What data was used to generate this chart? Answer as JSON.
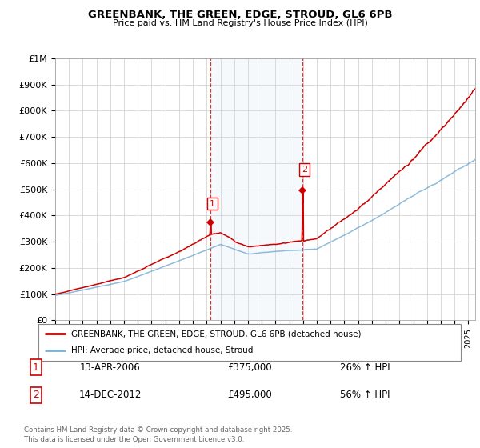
{
  "title": "GREENBANK, THE GREEN, EDGE, STROUD, GL6 6PB",
  "subtitle": "Price paid vs. HM Land Registry's House Price Index (HPI)",
  "ylim": [
    0,
    1000000
  ],
  "xlim_start": 1995.0,
  "xlim_end": 2025.5,
  "hpi_color": "#7bafd4",
  "price_color": "#cc0000",
  "sale1_date": 2006.28,
  "sale1_price": 375000,
  "sale1_label": "1",
  "sale2_date": 2012.95,
  "sale2_price": 495000,
  "sale2_label": "2",
  "legend_line1": "GREENBANK, THE GREEN, EDGE, STROUD, GL6 6PB (detached house)",
  "legend_line2": "HPI: Average price, detached house, Stroud",
  "table_row1": [
    "1",
    "13-APR-2006",
    "£375,000",
    "26% ↑ HPI"
  ],
  "table_row2": [
    "2",
    "14-DEC-2012",
    "£495,000",
    "56% ↑ HPI"
  ],
  "footer": "Contains HM Land Registry data © Crown copyright and database right 2025.\nThis data is licensed under the Open Government Licence v3.0.",
  "shaded_x1": 2006.28,
  "shaded_x2": 2012.95,
  "background_color": "#ffffff",
  "grid_color": "#cccccc"
}
